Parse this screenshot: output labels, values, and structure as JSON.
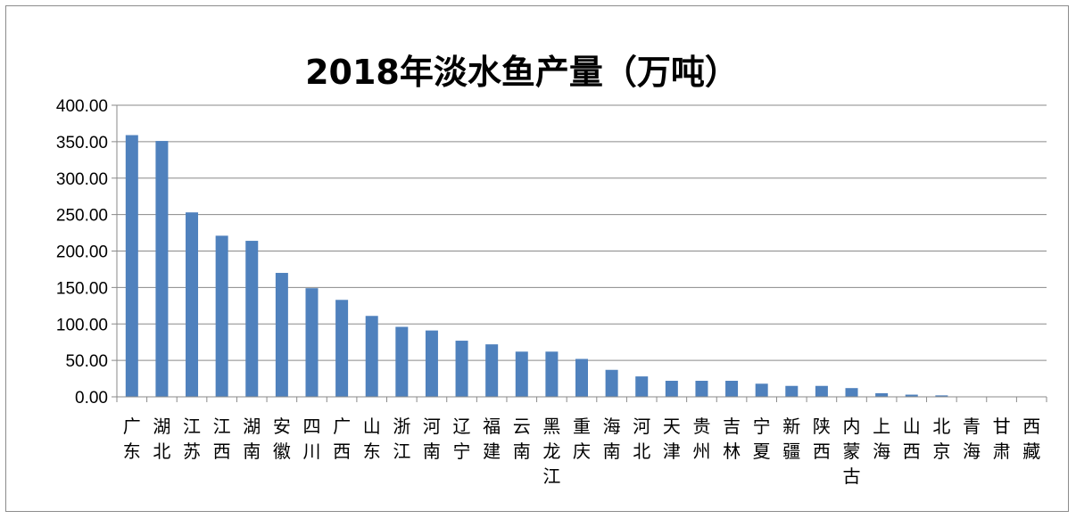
{
  "chart_data": {
    "type": "bar",
    "title": "2018年淡水鱼产量（万吨）",
    "xlabel": "",
    "ylabel": "",
    "ylim": [
      0,
      400
    ],
    "yticks": [
      "0.00",
      "50.00",
      "100.00",
      "150.00",
      "200.00",
      "250.00",
      "300.00",
      "350.00",
      "400.00"
    ],
    "grid": true,
    "legend": "none",
    "bar_color": "#4f81bd",
    "categories": [
      "广东",
      "湖北",
      "江苏",
      "江西",
      "湖南",
      "安徽",
      "四川",
      "广西",
      "山东",
      "浙江",
      "河南",
      "辽宁",
      "福建",
      "云南",
      "黑龙江",
      "重庆",
      "海南",
      "河北",
      "天津",
      "贵州",
      "吉林",
      "宁夏",
      "新疆",
      "陕西",
      "内蒙古",
      "上海",
      "山西",
      "北京",
      "青海",
      "甘肃",
      "西藏"
    ],
    "values": [
      359,
      351,
      253,
      221,
      214,
      170,
      149,
      133,
      111,
      96,
      91,
      77,
      72,
      62,
      62,
      52,
      37,
      28,
      22,
      22,
      22,
      18,
      15,
      15,
      12,
      5,
      3,
      2,
      0.6,
      0.5,
      0.3
    ]
  }
}
